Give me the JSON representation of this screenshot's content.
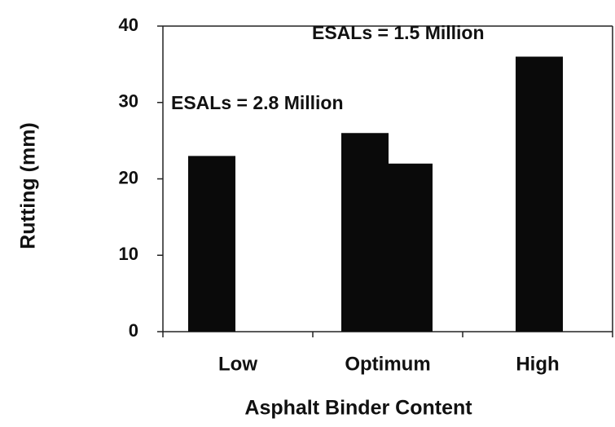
{
  "chart_data": {
    "type": "bar",
    "x_label": "Asphalt Binder Content",
    "y_label": "Rutting (mm)",
    "categories": [
      "Low",
      "Optimum",
      "High"
    ],
    "series": [
      {
        "name": "ESALs = 2.8 Million",
        "color": "#0a0a0a",
        "values": [
          23,
          26,
          null
        ]
      },
      {
        "name": "ESALs = 1.5 Million",
        "color": "#0a0a0a",
        "values": [
          null,
          22,
          36
        ]
      }
    ],
    "ylim": [
      0,
      40
    ],
    "yticks": [
      0,
      10,
      20,
      30,
      40
    ]
  }
}
